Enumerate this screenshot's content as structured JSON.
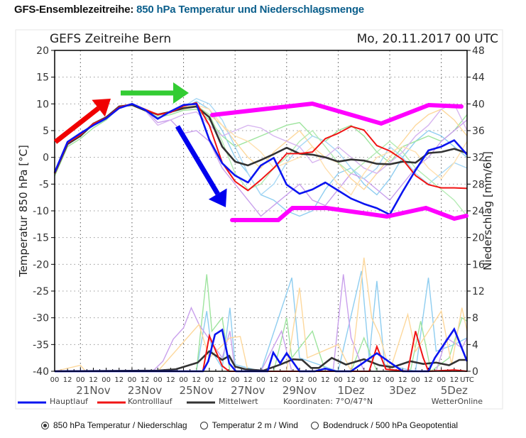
{
  "header": {
    "prefix": "GFS-Ensemblezeitreihe:",
    "title": "850 hPa Temperatur und Niederschlagsmenge"
  },
  "chart_data": {
    "type": "line",
    "title": "GEFS Zeitreihe Bern",
    "run": "Mo, 20.11.2017 00 UTC",
    "ylabel": "Temperatur 850 hPa [°C]",
    "y2label": "Niederschlag [mm/6h]",
    "ylim": [
      -40,
      20
    ],
    "y2lim": [
      0,
      48
    ],
    "yticks": [
      20,
      15,
      10,
      5,
      0,
      -5,
      -10,
      -15,
      -20,
      -25,
      -30,
      -35,
      -40
    ],
    "y2ticks": [
      48,
      44,
      40,
      36,
      32,
      28,
      24,
      20,
      16,
      12,
      8,
      4,
      0
    ],
    "x_hour_labels": [
      "00",
      "12"
    ],
    "x_utc_label": "UTC",
    "x_date_labels": [
      "21Nov",
      "23Nov",
      "25Nov",
      "27Nov",
      "29Nov",
      "1Dez",
      "3Dez",
      "5Dez"
    ],
    "x_date_label_days": [
      1,
      3,
      5,
      7,
      9,
      11,
      13,
      15
    ],
    "x_days_range": [
      0,
      16
    ],
    "x_step_days": 0.5,
    "grid": true,
    "legend": {
      "position": "bottom",
      "items": [
        {
          "name": "Hauptlauf",
          "color": "#0a14f0"
        },
        {
          "name": "Kontrolllauf",
          "color": "#f01414"
        },
        {
          "name": "Mittelwert",
          "color": "#333333"
        }
      ],
      "coords": "Koordinaten: 7°O/47°N",
      "credit": "WetterOnline"
    },
    "series": [
      {
        "name": "Hauptlauf",
        "color": "#0a14f0",
        "temperature": [
          -2.8,
          2.9,
          4.5,
          6,
          7.3,
          9.2,
          10,
          8.9,
          7.2,
          8.6,
          9.8,
          10,
          3.3,
          -1.1,
          -3.4,
          -4.7,
          -1.5,
          -0.1,
          -5.1,
          -6.8,
          -6,
          -4.7,
          -6.2,
          -7.7,
          -8.7,
          -9.5,
          -10.7,
          -6.4,
          -2.4,
          1.3,
          2,
          3.2,
          0.5
        ],
        "precip": [
          [
            0,
            0
          ],
          [
            5.75,
            0
          ],
          [
            5.96,
            1.5
          ],
          [
            6.22,
            5.5
          ],
          [
            6.5,
            6.2
          ],
          [
            6.77,
            1.2
          ],
          [
            7.03,
            0
          ],
          [
            8.26,
            0
          ],
          [
            8.48,
            2.8
          ],
          [
            8.75,
            1.2
          ],
          [
            9,
            2.7
          ],
          [
            9.5,
            0
          ],
          [
            10.1,
            0
          ],
          [
            10.5,
            0.4
          ],
          [
            10.9,
            0
          ],
          [
            11.5,
            0
          ],
          [
            12.5,
            2.7
          ],
          [
            13.5,
            0
          ],
          [
            14.5,
            0
          ],
          [
            14.75,
            2
          ],
          [
            15.5,
            6.3
          ],
          [
            16,
            1.5
          ]
        ]
      },
      {
        "name": "Kontrolllauf",
        "color": "#f01414",
        "temperature": [
          -3,
          2.7,
          4.2,
          6.3,
          7.4,
          9.4,
          10,
          9,
          8,
          8.4,
          9.6,
          10.2,
          6,
          -1,
          -4.5,
          -6.2,
          -4.2,
          -2,
          0.7,
          0.7,
          1,
          3.5,
          4.5,
          5.8,
          5.1,
          2.2,
          1.2,
          -0.4,
          -3.4,
          -5.1,
          -5.7,
          -5.7,
          -5.8
        ],
        "precip": [
          [
            0,
            0
          ],
          [
            5.75,
            0
          ],
          [
            6,
            5.3
          ],
          [
            6.5,
            0.8
          ],
          [
            6.77,
            0
          ],
          [
            12.2,
            0
          ],
          [
            12.5,
            3.7
          ],
          [
            12.85,
            0.3
          ],
          [
            13.7,
            0
          ],
          [
            14,
            6
          ],
          [
            14.3,
            2
          ],
          [
            14.5,
            0
          ],
          [
            15.5,
            0.2
          ],
          [
            16,
            0
          ]
        ]
      },
      {
        "name": "Mittelwert",
        "color": "#333333",
        "temperature": [
          -3,
          2.5,
          4,
          6.3,
          7.5,
          9.5,
          9.8,
          8.8,
          8,
          8.5,
          9.2,
          9.5,
          7.5,
          2,
          -0.8,
          -1.5,
          -0.5,
          0.6,
          1.8,
          0.7,
          0.5,
          0,
          -0.8,
          -0.4,
          -0.6,
          -1.2,
          -1.3,
          -0.8,
          -1,
          0.8,
          1,
          1.6,
          0.8
        ],
        "precip": [
          [
            0,
            0
          ],
          [
            4,
            0.1
          ],
          [
            4.7,
            0.3
          ],
          [
            5.55,
            1.3
          ],
          [
            6,
            3
          ],
          [
            6.5,
            1.7
          ],
          [
            6.77,
            2.3
          ],
          [
            7,
            0.7
          ],
          [
            7.4,
            0.3
          ],
          [
            8.1,
            0.1
          ],
          [
            8.75,
            1
          ],
          [
            9.25,
            1.8
          ],
          [
            9.6,
            1.7
          ],
          [
            9.95,
            0.5
          ],
          [
            10.25,
            0.5
          ],
          [
            10.75,
            2
          ],
          [
            11.3,
            1
          ],
          [
            12,
            1.8
          ],
          [
            12.6,
            0.9
          ],
          [
            13.1,
            0.6
          ],
          [
            13.8,
            1.5
          ],
          [
            14.3,
            1.1
          ],
          [
            14.8,
            1.3
          ],
          [
            15.3,
            0.9
          ],
          [
            15.7,
            1.7
          ],
          [
            16,
            1.7
          ]
        ]
      }
    ],
    "members": [
      {
        "color": "#8ecdf0",
        "temperature": [
          -3,
          2.5,
          4,
          6,
          7,
          9.5,
          10,
          9,
          8,
          8.5,
          9,
          10.5,
          9,
          5,
          0,
          -3,
          -7,
          -8,
          -10,
          -11,
          -10,
          -6,
          -3,
          -2,
          -5,
          -7,
          -4,
          0,
          3,
          5,
          4,
          2,
          0
        ],
        "precip": [
          [
            0,
            0
          ],
          [
            5.5,
            0
          ],
          [
            5.9,
            9
          ],
          [
            6.1,
            3
          ],
          [
            6.5,
            0.5
          ],
          [
            6.8,
            9.5
          ],
          [
            7,
            1
          ],
          [
            8,
            0
          ],
          [
            9.2,
            14
          ],
          [
            9.5,
            2
          ],
          [
            11,
            0
          ],
          [
            11.9,
            15
          ],
          [
            12.2,
            2
          ],
          [
            12.5,
            13.5
          ],
          [
            12.8,
            1
          ],
          [
            14,
            0
          ],
          [
            14.5,
            14
          ],
          [
            14.8,
            3
          ],
          [
            15.5,
            4
          ],
          [
            16,
            5
          ]
        ]
      },
      {
        "color": "#9ee49e",
        "temperature": [
          -3.5,
          2,
          3.5,
          5.5,
          7,
          9.3,
          9.8,
          8.7,
          7.5,
          8,
          8.8,
          9,
          7,
          4,
          2,
          3,
          4,
          5,
          6,
          6.5,
          4,
          3,
          5,
          6,
          4,
          1,
          -1,
          2,
          3,
          4,
          3,
          5,
          8
        ],
        "precip": [
          [
            0,
            0
          ],
          [
            5.5,
            0
          ],
          [
            5.9,
            14.5
          ],
          [
            6.1,
            6
          ],
          [
            6.5,
            8
          ],
          [
            6.8,
            0
          ],
          [
            8.5,
            0
          ],
          [
            9,
            8
          ],
          [
            9.2,
            2
          ],
          [
            10,
            6
          ],
          [
            10.5,
            0
          ],
          [
            11.5,
            0
          ],
          [
            12,
            5
          ],
          [
            12.5,
            0
          ],
          [
            13.8,
            0
          ],
          [
            14.2,
            7.5
          ],
          [
            14.6,
            0
          ],
          [
            15.3,
            2
          ],
          [
            15.8,
            8
          ],
          [
            16,
            7.5
          ]
        ]
      },
      {
        "color": "#c9a0ec",
        "temperature": [
          -3,
          2.3,
          4,
          6,
          7.3,
          9.6,
          10,
          9,
          6.5,
          7,
          4.5,
          5,
          3,
          -2,
          -5,
          -8,
          -11,
          -9,
          -7,
          -5,
          -8,
          -9,
          -6,
          -3,
          -4,
          -6,
          -8,
          -5,
          -2,
          0,
          3,
          5,
          7
        ],
        "precip": [
          [
            0,
            0
          ],
          [
            3.8,
            0
          ],
          [
            4.2,
            1.5
          ],
          [
            4.6,
            4.8
          ],
          [
            5,
            6.5
          ],
          [
            5.3,
            9.5
          ],
          [
            5.6,
            7
          ],
          [
            6.5,
            2
          ],
          [
            6.8,
            6
          ],
          [
            7,
            0
          ],
          [
            8,
            0
          ],
          [
            8.8,
            6
          ],
          [
            9.2,
            0
          ],
          [
            10.8,
            0
          ],
          [
            11.2,
            14.5
          ],
          [
            11.5,
            5
          ],
          [
            12,
            0
          ],
          [
            14.8,
            0
          ],
          [
            15.2,
            5
          ],
          [
            15.8,
            3.5
          ],
          [
            16,
            5
          ]
        ]
      },
      {
        "color": "#fdd89c",
        "temperature": [
          -2.7,
          2.6,
          4.3,
          6.4,
          7.5,
          9.5,
          9.9,
          8.8,
          8,
          8.6,
          9,
          9.5,
          8,
          6,
          3,
          0,
          -2,
          1,
          3,
          5,
          2,
          0,
          -1,
          -4,
          -6,
          -3,
          0,
          3,
          6,
          8,
          9,
          7,
          4
        ],
        "precip": [
          [
            0,
            0
          ],
          [
            1,
            0.9
          ],
          [
            1.2,
            0
          ],
          [
            4,
            0
          ],
          [
            5.6,
            7
          ],
          [
            6,
            2
          ],
          [
            6.8,
            5
          ],
          [
            7.2,
            5.2
          ],
          [
            7.5,
            0
          ],
          [
            9,
            0
          ],
          [
            9.5,
            12.5
          ],
          [
            9.8,
            2
          ],
          [
            11,
            4
          ],
          [
            11.5,
            0
          ],
          [
            12,
            17
          ],
          [
            12.3,
            8
          ],
          [
            12.6,
            5.5
          ],
          [
            13,
            0
          ],
          [
            13.7,
            8.5
          ],
          [
            14,
            3
          ],
          [
            15,
            9
          ],
          [
            15.4,
            1
          ],
          [
            15.8,
            9.5
          ],
          [
            16,
            6
          ]
        ]
      },
      {
        "color": "#a8d8f5",
        "temperature": [
          -3,
          2.7,
          4.2,
          6.2,
          7.4,
          9.4,
          10,
          9,
          8,
          8.4,
          9.5,
          11,
          10,
          7,
          2,
          -3,
          -7,
          -5,
          -1,
          2,
          4,
          3,
          1,
          -2,
          -4,
          -2,
          2,
          0,
          -3,
          -5,
          -3,
          -1,
          -2
        ]
      },
      {
        "color": "#b4ebb4",
        "temperature": [
          -3,
          2.5,
          4,
          6,
          7.2,
          9.5,
          10,
          9,
          7.8,
          8.5,
          9.2,
          9.7,
          8,
          3,
          -3,
          -6,
          -5,
          -2,
          0,
          3,
          5,
          2,
          -1,
          -3,
          -1,
          1,
          3,
          1,
          -2,
          -4,
          -6,
          -8,
          -11
        ]
      },
      {
        "color": "#d7b5f0",
        "temperature": [
          -3,
          2.4,
          4,
          6.1,
          7.2,
          9.4,
          9.9,
          8.8,
          6,
          7,
          8,
          8.5,
          6,
          4,
          5,
          6,
          5.5,
          4,
          3,
          2,
          -1,
          0,
          2,
          0,
          -2,
          -3,
          -1,
          1,
          4,
          6,
          9,
          10,
          5
        ]
      },
      {
        "color": "#ffe0b0",
        "temperature": [
          -3,
          2.5,
          4.2,
          6.3,
          7.4,
          9.6,
          10,
          9,
          8.1,
          8.6,
          9.4,
          9.8,
          9,
          6,
          4,
          3,
          1,
          -2,
          -1,
          0,
          2,
          -2,
          -5,
          -7,
          -3,
          0,
          1,
          2,
          1,
          -2,
          -4,
          -1,
          3
        ]
      }
    ],
    "annotation_colors": {
      "rise_arrow": "#f00000",
      "plateau_arrow": "#33cc33",
      "drop_arrow": "#0000ee",
      "spread_envelope": "#ff00ff"
    }
  },
  "options": [
    {
      "label": "850 hPa Temperatur / Niederschlag",
      "selected": true
    },
    {
      "label": "Temperatur 2 m / Wind",
      "selected": false
    },
    {
      "label": "Bodendruck / 500 hPa Geopotential",
      "selected": false
    }
  ]
}
